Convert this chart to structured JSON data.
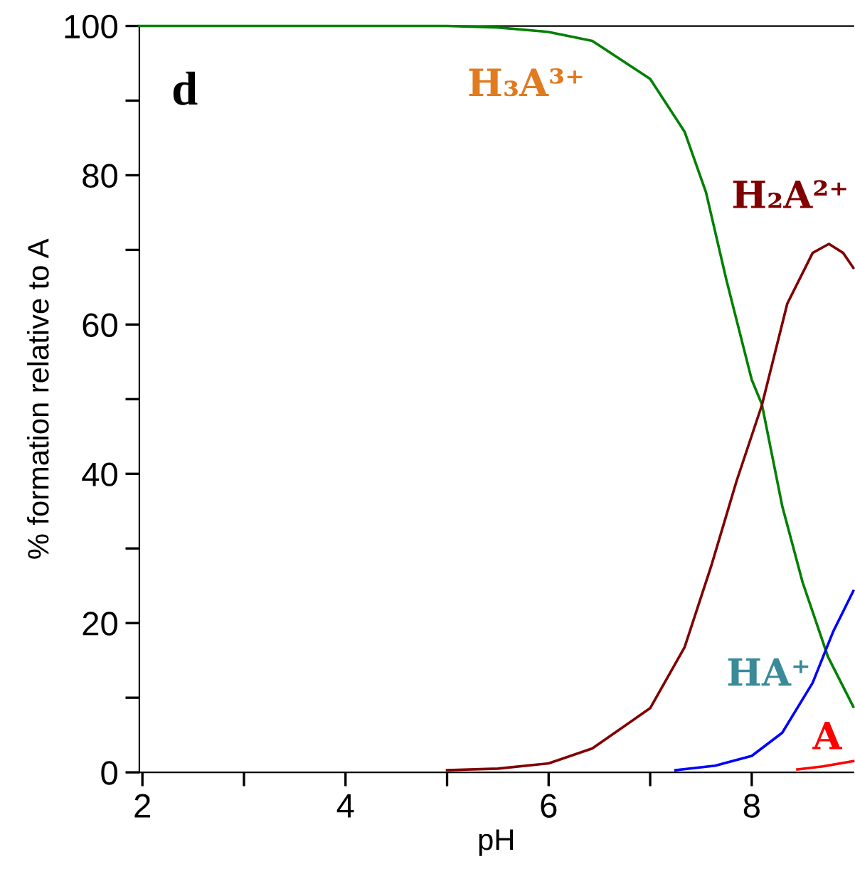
{
  "chart_data": {
    "type": "line",
    "xlabel": "pH",
    "ylabel": "% formation relative to A",
    "xlim": [
      1.97,
      9.0
    ],
    "ylim": [
      0,
      100
    ],
    "xticks": [
      2,
      {
        "value": 3,
        "label": null
      },
      4,
      {
        "value": 5,
        "label": null
      },
      6,
      {
        "value": 7,
        "label": null
      },
      8
    ],
    "yticks": [
      0,
      {
        "value": 10,
        "label": null
      },
      20,
      {
        "value": 30,
        "label": null
      },
      40,
      {
        "value": 50,
        "label": null
      },
      60,
      {
        "value": 70,
        "label": null
      },
      80,
      {
        "value": 90,
        "label": null
      },
      100
    ],
    "grid": false,
    "legend": false,
    "marker": "none",
    "line_style": "solid",
    "annotations": [
      "d"
    ],
    "series": [
      {
        "name": "H₃A³⁺",
        "color": "#008000",
        "x": [
          1.97,
          3,
          4,
          5,
          5.5,
          6,
          6.43,
          7,
          7.34,
          7.55,
          7.75,
          8,
          8.1,
          8.3,
          8.5,
          8.75,
          9
        ],
        "values": [
          100,
          100,
          100,
          100,
          99.8,
          99.2,
          98,
          92.9,
          85.8,
          77.7,
          66,
          52.6,
          49.3,
          35.7,
          25.5,
          15.5,
          8.8
        ]
      },
      {
        "name": "H₂A²⁺",
        "color": "#800000",
        "x": [
          5,
          5.5,
          6,
          6.43,
          7,
          7.34,
          7.6,
          7.85,
          8.1,
          8.35,
          8.6,
          8.76,
          8.9,
          9
        ],
        "values": [
          0.3,
          0.5,
          1.2,
          3.2,
          8.6,
          16.8,
          27.6,
          39,
          49.2,
          62.8,
          69.6,
          70.8,
          69.6,
          67.6
        ]
      },
      {
        "name": "HA⁺",
        "color": "#0000ff",
        "x": [
          7.25,
          7.64,
          8,
          8.3,
          8.6,
          8.8,
          9
        ],
        "values": [
          0.3,
          0.9,
          2.2,
          5.3,
          12,
          18.8,
          24.3
        ]
      },
      {
        "name": "A",
        "color": "#ff0000",
        "x": [
          8.45,
          8.7,
          9
        ],
        "values": [
          0.4,
          0.8,
          1.5
        ]
      }
    ]
  }
}
